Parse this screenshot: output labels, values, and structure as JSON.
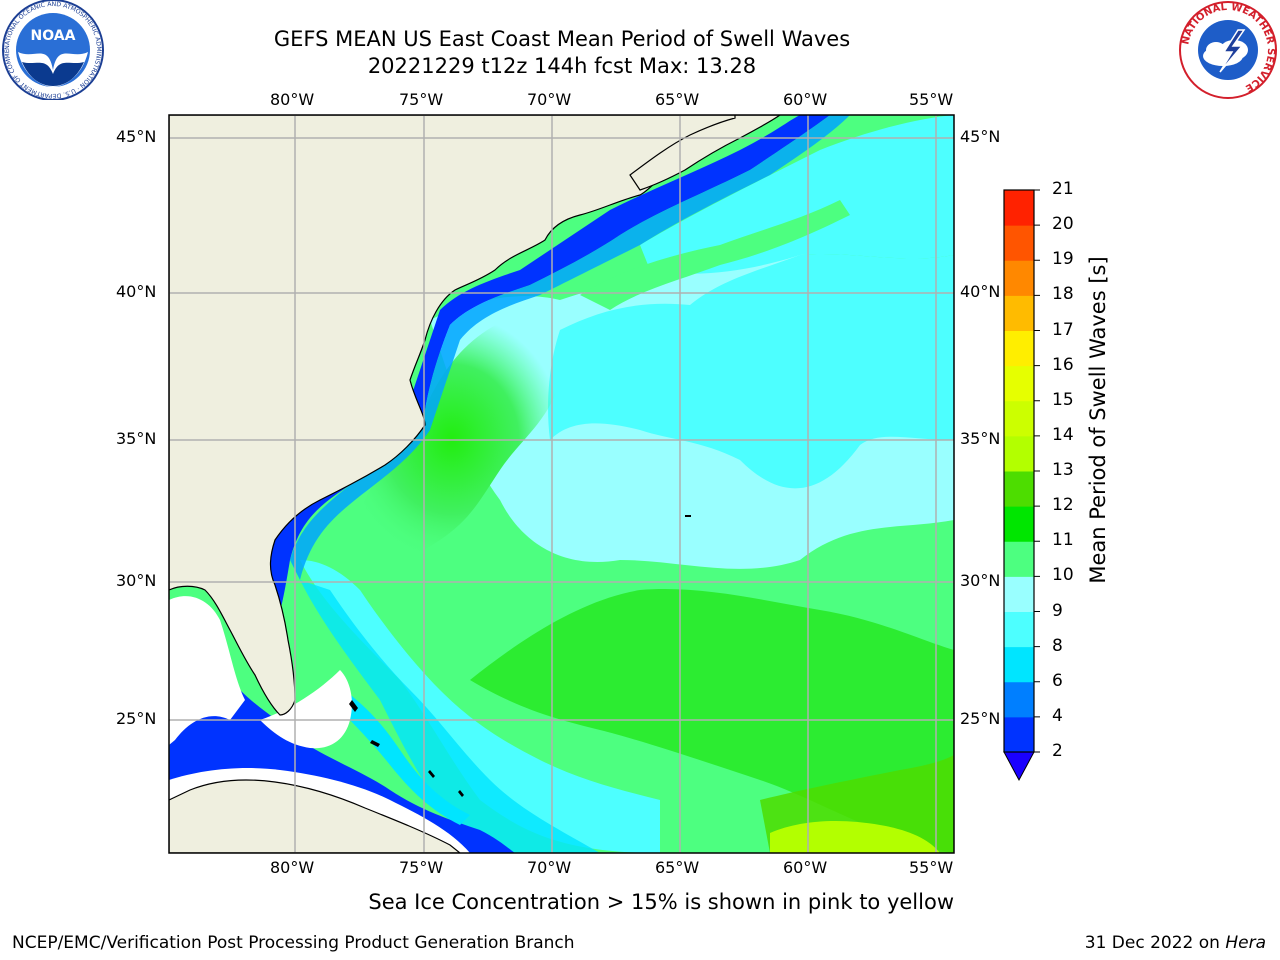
{
  "title": {
    "line1": "GEFS MEAN US East Coast Mean Period of Swell Waves",
    "line2": "20221229 t12z 144h fcst   Max: 13.28"
  },
  "map": {
    "lon_labels": [
      "80°W",
      "75°W",
      "70°W",
      "65°W",
      "60°W",
      "55°W"
    ],
    "lat_labels": [
      "45°N",
      "40°N",
      "35°N",
      "30°N",
      "25°N"
    ],
    "land_color": "#efefdf",
    "grid_color": "#b0b0b0"
  },
  "colorbar": {
    "title": "Mean Period of Swell Waves [s]",
    "ticks": [
      "2",
      "4",
      "6",
      "8",
      "9",
      "10",
      "11",
      "12",
      "13",
      "14",
      "15",
      "16",
      "17",
      "18",
      "19",
      "20",
      "21"
    ],
    "colors": [
      "#0033ff",
      "#007fff",
      "#00e5ff",
      "#4dffff",
      "#99ffff",
      "#4dff80",
      "#00e600",
      "#4ddd00",
      "#b3ff00",
      "#ccff00",
      "#e6ff00",
      "#ffee00",
      "#ffbb00",
      "#ff8800",
      "#ff5500",
      "#ff2200"
    ],
    "extend_color": "#1a00ff"
  },
  "caption": "Sea Ice Concentration > 15% is shown in pink to yellow",
  "footer": {
    "left": "NCEP/EMC/Verification Post Processing Product Generation Branch",
    "date": "31 Dec 2022 on ",
    "machine": "Hera"
  },
  "logos": {
    "noaa_text": "NOAA",
    "noaa_ring": "NATIONAL OCEANIC AND ATMOSPHERIC ADMINISTRATION · U.S. DEPARTMENT OF COMMERCE",
    "nws_ring": "NATIONAL WEATHER SERVICE"
  }
}
